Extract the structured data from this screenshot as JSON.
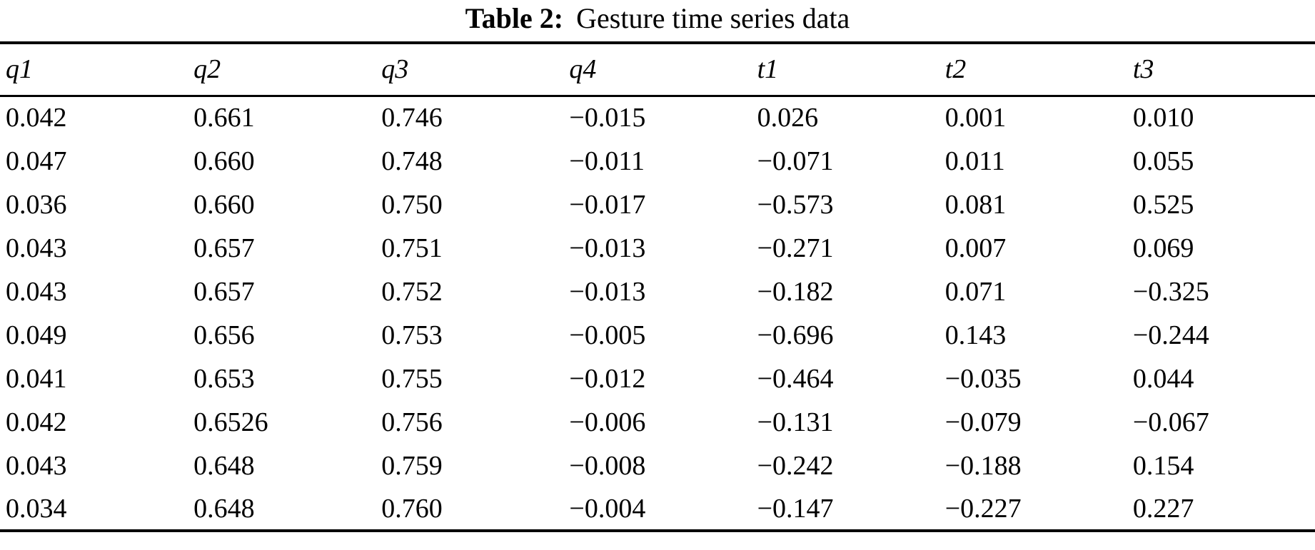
{
  "caption": {
    "label": "Table 2:",
    "title": "Gesture time series data"
  },
  "table": {
    "columns": [
      "q1",
      "q2",
      "q3",
      "q4",
      "t1",
      "t2",
      "t3"
    ],
    "rows": [
      [
        "0.042",
        "0.661",
        "0.746",
        "−0.015",
        "0.026",
        "0.001",
        "0.010"
      ],
      [
        "0.047",
        "0.660",
        "0.748",
        "−0.011",
        "−0.071",
        "0.011",
        "0.055"
      ],
      [
        "0.036",
        "0.660",
        "0.750",
        "−0.017",
        "−0.573",
        "0.081",
        "0.525"
      ],
      [
        "0.043",
        "0.657",
        "0.751",
        "−0.013",
        "−0.271",
        "0.007",
        "0.069"
      ],
      [
        "0.043",
        "0.657",
        "0.752",
        "−0.013",
        "−0.182",
        "0.071",
        "−0.325"
      ],
      [
        "0.049",
        "0.656",
        "0.753",
        "−0.005",
        "−0.696",
        "0.143",
        "−0.244"
      ],
      [
        "0.041",
        "0.653",
        "0.755",
        "−0.012",
        "−0.464",
        "−0.035",
        "0.044"
      ],
      [
        "0.042",
        "0.6526",
        "0.756",
        "−0.006",
        "−0.131",
        "−0.079",
        "−0.067"
      ],
      [
        "0.043",
        "0.648",
        "0.759",
        "−0.008",
        "−0.242",
        "−0.188",
        "0.154"
      ],
      [
        "0.034",
        "0.648",
        "0.760",
        "−0.004",
        "−0.147",
        "−0.227",
        "0.227"
      ]
    ]
  },
  "chart_data": {
    "type": "table",
    "title": "Table 2: Gesture time series data",
    "categories": [
      "q1",
      "q2",
      "q3",
      "q4",
      "t1",
      "t2",
      "t3"
    ],
    "series": [
      {
        "name": "q1",
        "values": [
          0.042,
          0.047,
          0.036,
          0.043,
          0.043,
          0.049,
          0.041,
          0.042,
          0.043,
          0.034
        ]
      },
      {
        "name": "q2",
        "values": [
          0.661,
          0.66,
          0.66,
          0.657,
          0.657,
          0.656,
          0.653,
          0.6526,
          0.648,
          0.648
        ]
      },
      {
        "name": "q3",
        "values": [
          0.746,
          0.748,
          0.75,
          0.751,
          0.752,
          0.753,
          0.755,
          0.756,
          0.759,
          0.76
        ]
      },
      {
        "name": "q4",
        "values": [
          -0.015,
          -0.011,
          -0.017,
          -0.013,
          -0.013,
          -0.005,
          -0.012,
          -0.006,
          -0.008,
          -0.004
        ]
      },
      {
        "name": "t1",
        "values": [
          0.026,
          -0.071,
          -0.573,
          -0.271,
          -0.182,
          -0.696,
          -0.464,
          -0.131,
          -0.242,
          -0.147
        ]
      },
      {
        "name": "t2",
        "values": [
          0.001,
          0.011,
          0.081,
          0.007,
          0.071,
          0.143,
          -0.035,
          -0.079,
          -0.188,
          -0.227
        ]
      },
      {
        "name": "t3",
        "values": [
          0.01,
          0.055,
          0.525,
          0.069,
          -0.325,
          -0.244,
          0.044,
          -0.067,
          0.154,
          0.227
        ]
      }
    ]
  }
}
